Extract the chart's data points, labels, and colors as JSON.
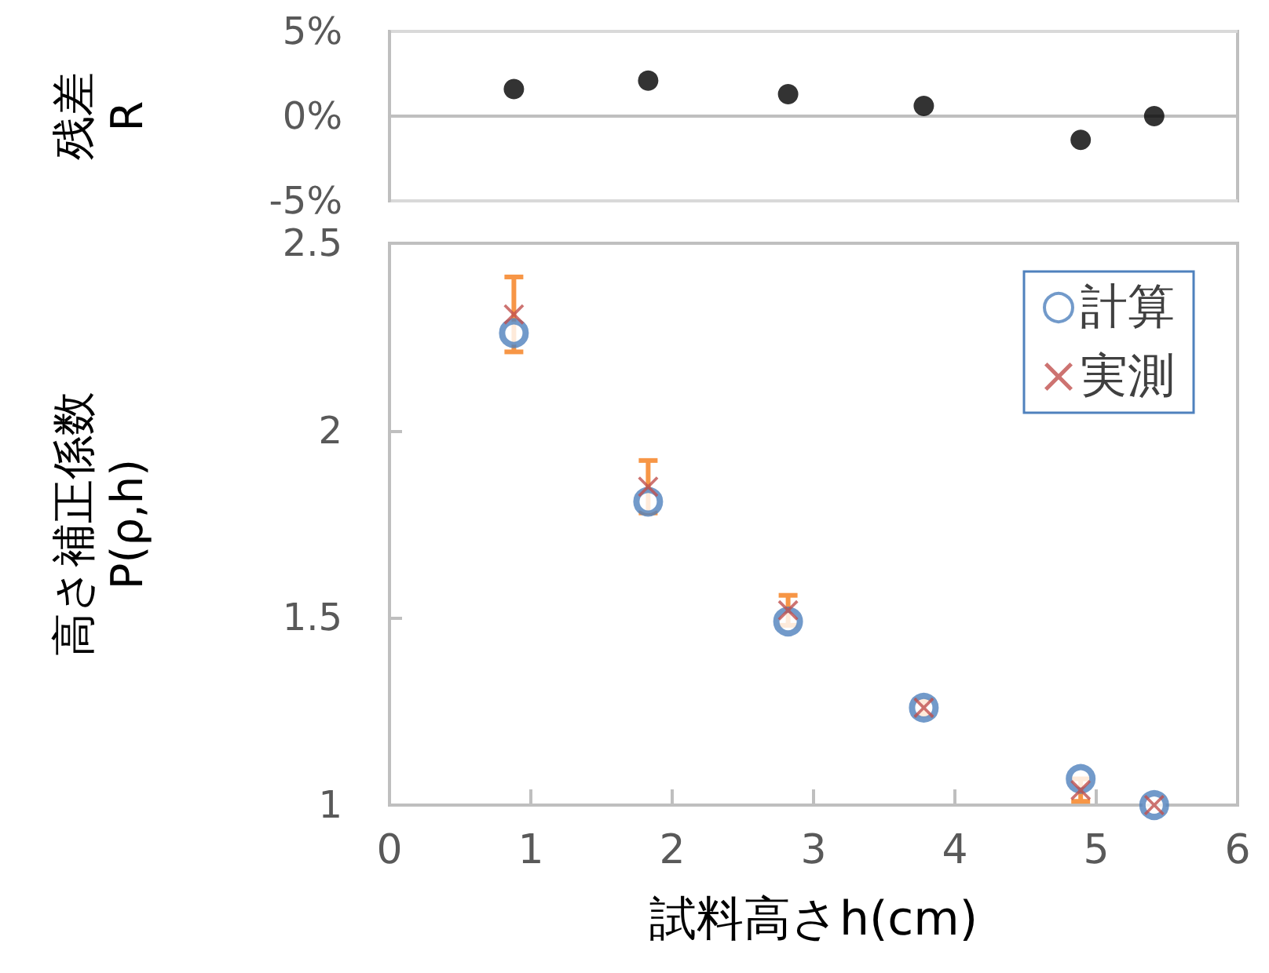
{
  "chart_data": [
    {
      "type": "scatter",
      "ylabel": "残差\nR",
      "x": [
        0.88,
        1.83,
        2.82,
        3.78,
        4.89,
        5.41
      ],
      "series": [
        {
          "color": "#000000",
          "values": [
            1.6,
            2.1,
            1.3,
            0.6,
            -1.4,
            0.0
          ]
        }
      ],
      "xlim": [
        0,
        6
      ],
      "ylim": [
        -5,
        5
      ],
      "yticks": [
        {
          "value": -5,
          "label": "-5%"
        },
        {
          "value": 0,
          "label": "0%"
        },
        {
          "value": 5,
          "label": "5%"
        }
      ],
      "grid": "y",
      "tick_labels": "y",
      "marker": "circle"
    },
    {
      "type": "scatter",
      "xlabel": "試料高さh(cm)",
      "ylabel": "高さ補正係数\nP(ρ,h)",
      "x": [
        0.88,
        1.83,
        2.82,
        3.78,
        4.89,
        5.41
      ],
      "series": [
        {
          "name": "計算",
          "color": "#4f81bd",
          "marker": "circle",
          "values": [
            2.26,
            1.81,
            1.49,
            1.26,
            1.07,
            1.0
          ]
        },
        {
          "name": "実測",
          "color": "#c0504d",
          "marker": "cross",
          "values": [
            2.31,
            1.85,
            1.52,
            1.26,
            1.04,
            1.0
          ],
          "errors": [
            0.1,
            0.07,
            0.04,
            0.02,
            0.03,
            null
          ]
        }
      ],
      "xlim": [
        0,
        6
      ],
      "xticks": [
        0,
        1,
        2,
        3,
        4,
        5,
        6
      ],
      "ylim": [
        1,
        2.5
      ],
      "yticks": [
        1,
        1.5,
        2,
        2.5
      ],
      "grid": false,
      "legend": "top right"
    }
  ]
}
